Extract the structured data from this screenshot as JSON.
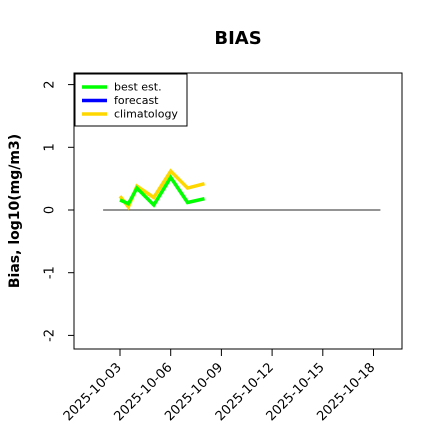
{
  "chart_data": {
    "type": "line",
    "title": "BIAS",
    "ylabel": "Bias, log10(mg/m3)",
    "xlabel": "",
    "ylim": [
      -2.1,
      2.1
    ],
    "xlim": [
      "2025-10-01",
      "2025-10-19"
    ],
    "yticks": [
      "-2",
      "-1",
      "0",
      "1",
      "2"
    ],
    "xticks": [
      {
        "date": "2025-10-03",
        "label": "2025-10-03",
        "color": "#000000"
      },
      {
        "date": "2025-10-06",
        "label": "2025-10-06",
        "color": "#000000"
      },
      {
        "date": "2025-10-09",
        "label": "2025-10-09",
        "color": "#228B22"
      },
      {
        "date": "2025-10-12",
        "label": "2025-10-12",
        "color": "#000000"
      },
      {
        "date": "2025-10-15",
        "label": "2025-10-15",
        "color": "#000000"
      },
      {
        "date": "2025-10-18",
        "label": "2025-10-18",
        "color": "#000000"
      }
    ],
    "zero_line": {
      "y": 0,
      "from": "2025-10-02",
      "to": "2025-10-19",
      "color": "#555555"
    },
    "legend_position": "top-left",
    "series": [
      {
        "name": "climatology",
        "color": "#FFD700",
        "points": [
          {
            "x": "2025-10-03",
            "y": 0.22
          },
          {
            "x": "2025-10-03 12:00",
            "y": 0.05
          },
          {
            "x": "2025-10-04",
            "y": 0.38
          },
          {
            "x": "2025-10-05",
            "y": 0.2
          },
          {
            "x": "2025-10-06",
            "y": 0.62
          },
          {
            "x": "2025-10-07",
            "y": 0.35
          },
          {
            "x": "2025-10-08",
            "y": 0.42
          }
        ]
      },
      {
        "name": "forecast",
        "color": "#0000FF",
        "points": []
      },
      {
        "name": "best est.",
        "color": "#00FF00",
        "points": [
          {
            "x": "2025-10-03",
            "y": 0.16
          },
          {
            "x": "2025-10-03 12:00",
            "y": 0.1
          },
          {
            "x": "2025-10-04",
            "y": 0.35
          },
          {
            "x": "2025-10-05",
            "y": 0.08
          },
          {
            "x": "2025-10-06",
            "y": 0.52
          },
          {
            "x": "2025-10-07",
            "y": 0.12
          },
          {
            "x": "2025-10-08",
            "y": 0.18
          }
        ]
      }
    ],
    "legend": [
      {
        "label": "best est.",
        "color": "#00FF00"
      },
      {
        "label": "forecast",
        "color": "#0000FF"
      },
      {
        "label": "climatology",
        "color": "#FFD700"
      }
    ]
  }
}
